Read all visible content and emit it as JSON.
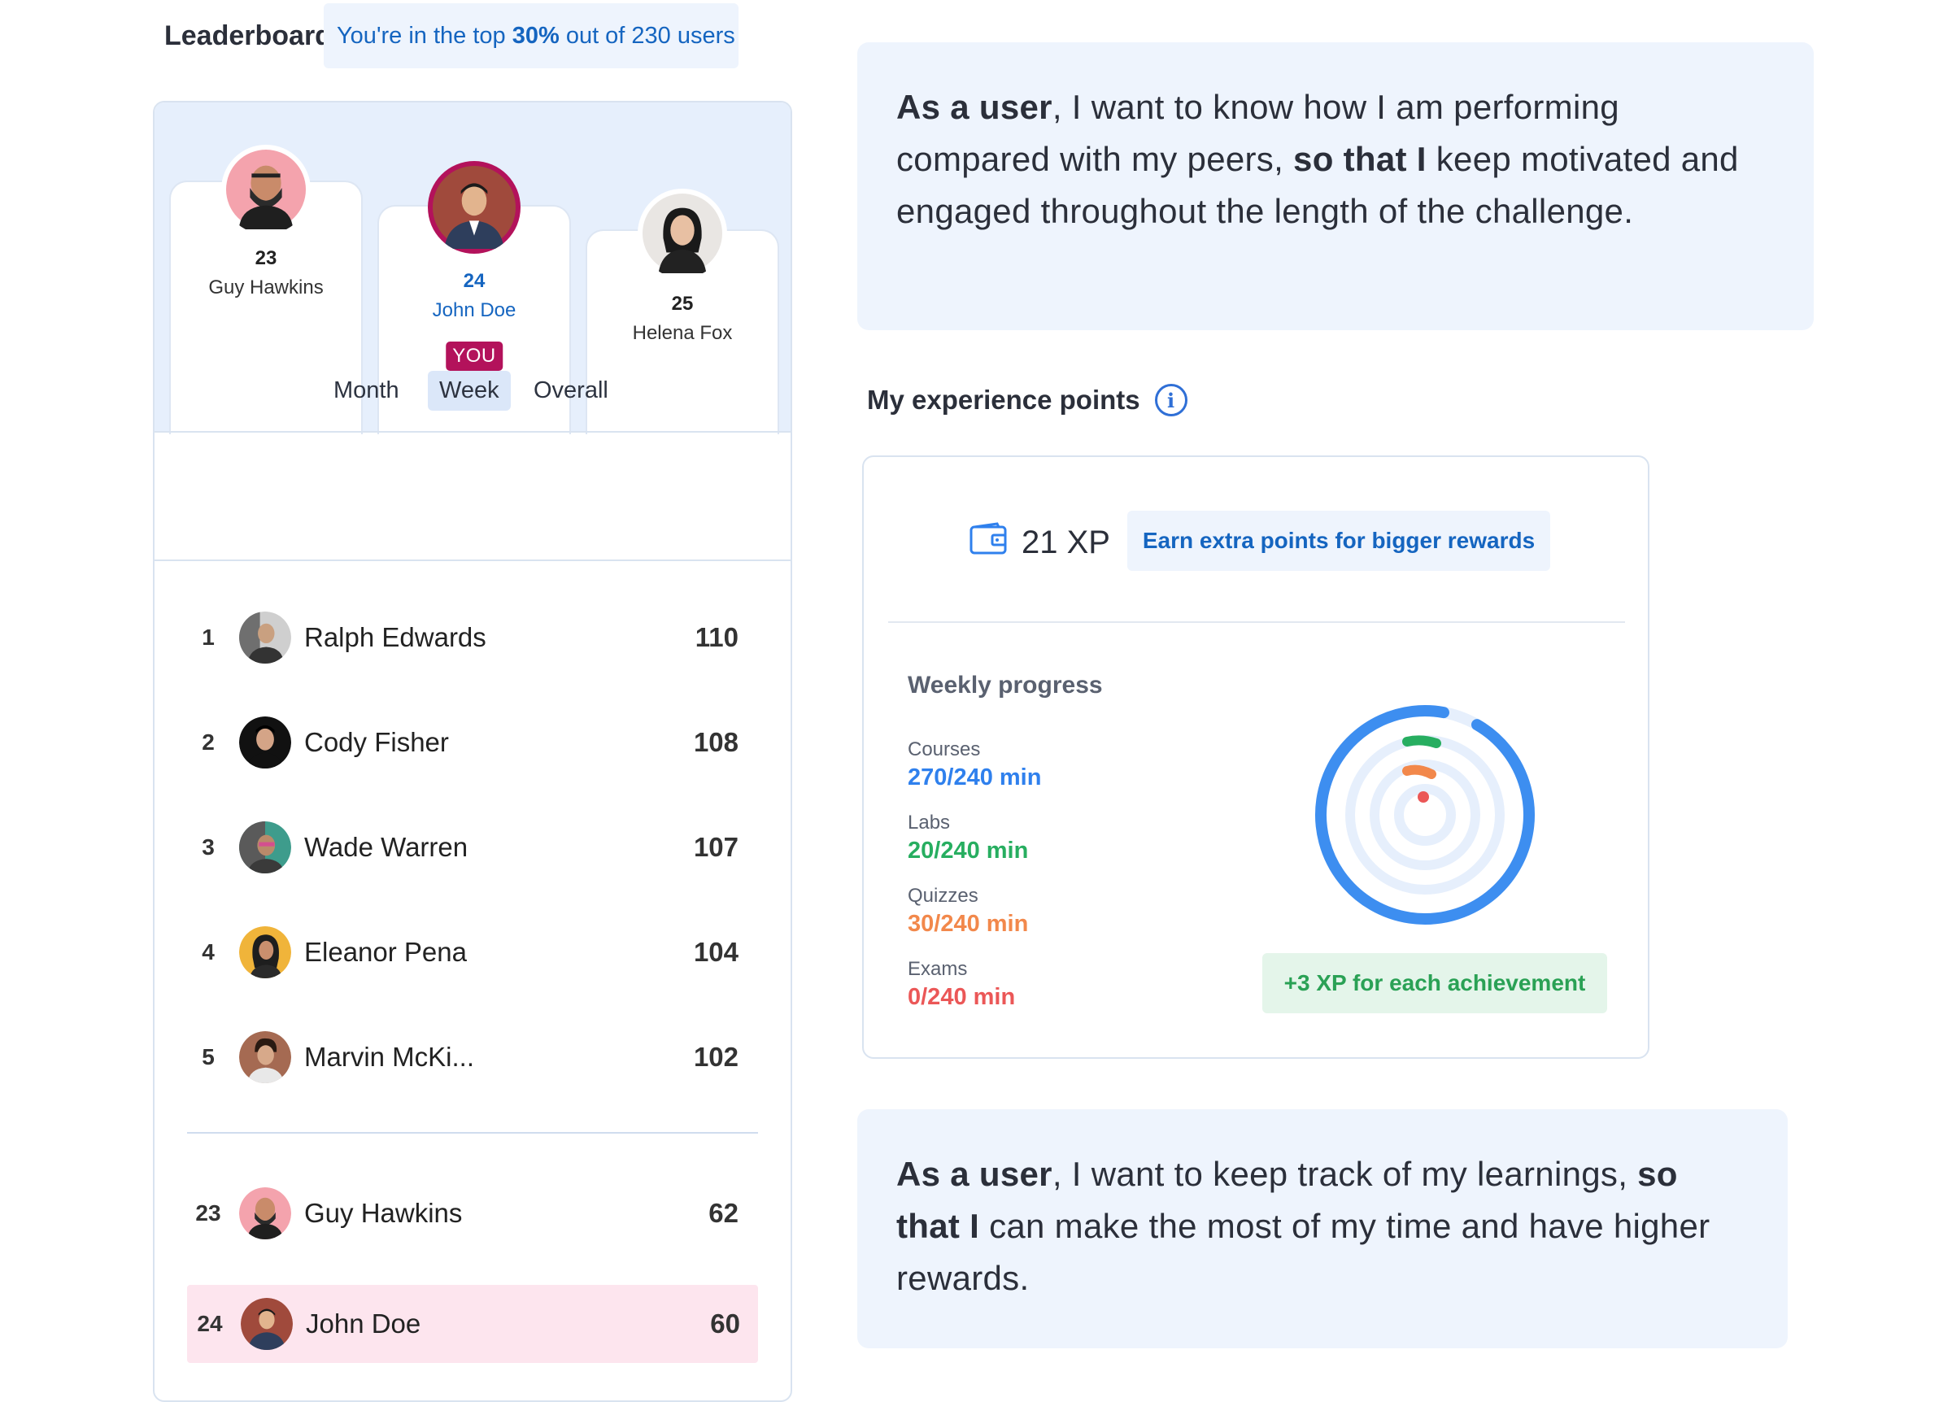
{
  "leaderboard": {
    "title": "Leaderboard",
    "rank_prefix": "You're in the top",
    "rank_percent": "30%",
    "rank_suffix": "out of 230 users",
    "podium": [
      {
        "rank": "23",
        "name": "Guy Hawkins"
      },
      {
        "rank": "24",
        "name": "John Doe",
        "badge": "YOU"
      },
      {
        "rank": "25",
        "name": "Helena Fox"
      }
    ],
    "tabs": [
      "Month",
      "Week",
      "Overall"
    ],
    "active_tab": "Week",
    "rows": [
      {
        "rank": "1",
        "name": "Ralph Edwards",
        "score": "110"
      },
      {
        "rank": "2",
        "name": "Cody Fisher",
        "score": "108"
      },
      {
        "rank": "3",
        "name": "Wade Warren",
        "score": "107"
      },
      {
        "rank": "4",
        "name": "Eleanor Pena",
        "score": "104"
      },
      {
        "rank": "5",
        "name": "Marvin McKi...",
        "score": "102"
      }
    ],
    "nearby_rows": [
      {
        "rank": "23",
        "name": "Guy Hawkins",
        "score": "62"
      },
      {
        "rank": "24",
        "name": "John Doe",
        "score": "60"
      }
    ]
  },
  "story1": {
    "lead_bold": "As a user",
    "lead": ", I want to know how I am performing compared with my peers, ",
    "mid_bold": "so that I",
    "tail": " keep motivated and engaged throughout the length of the challenge."
  },
  "story2": {
    "lead_bold": "As a user",
    "lead": ", I want to keep track of my learnings, ",
    "mid_bold": "so that I",
    "tail": " can make the most of my time and have higher rewards."
  },
  "xp": {
    "title": "My experience points",
    "info_icon": "info-icon",
    "value": "21 XP",
    "earn_label": "Earn extra points for bigger rewards",
    "weekly_title": "Weekly progress",
    "stats": [
      {
        "label": "Courses",
        "value": "270/240 min",
        "color": "#2f80ed"
      },
      {
        "label": "Labs",
        "value": "20/240 min",
        "color": "#27ae60"
      },
      {
        "label": "Quizzes",
        "value": "30/240 min",
        "color": "#f2884b"
      },
      {
        "label": "Exams",
        "value": "0/240 min",
        "color": "#eb5757"
      }
    ],
    "achievement_label": "+3 XP for each achievement"
  },
  "colors": {
    "accent": "#1565c0",
    "you_badge": "#b3125b",
    "highlight_row": "#fde5ee",
    "panel_bg": "#eef4fd"
  }
}
